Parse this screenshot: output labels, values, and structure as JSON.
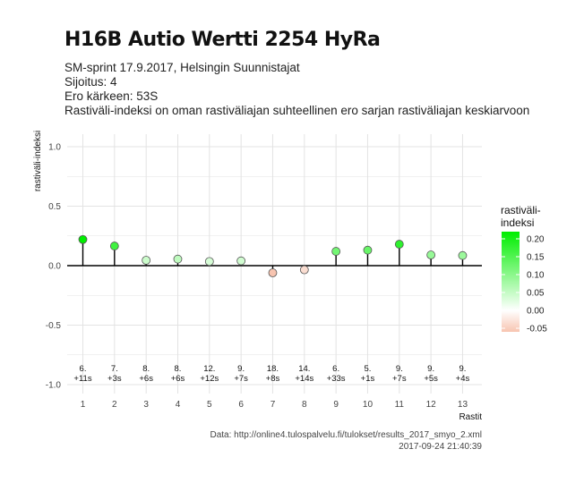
{
  "header": {
    "title": "H16B Autio Wertti 2254 HyRa",
    "subtitle_lines": [
      "SM-sprint 17.9.2017, Helsingin Suunnistajat",
      "Sijoitus: 4",
      "Ero kärkeen: 53S",
      "Rastiväli-indeksi on oman rastiväliajan suhteellinen ero sarjan rastiväliajan keskiarvoon"
    ]
  },
  "caption": {
    "source": "Data: http://online4.tulospalvelu.fi/tulokset/results_2017_smyo_2.xml",
    "timestamp": "2017-09-24 21:40:39"
  },
  "chart_data": {
    "type": "lollipop",
    "xlabel": "Rastit",
    "ylabel": "rastiväli-indeksi",
    "ylim": [
      -1.0,
      1.0
    ],
    "yticks": [
      -1.0,
      -0.5,
      0.0,
      0.5,
      1.0
    ],
    "ytick_labels": [
      "-1.0",
      "-0.5",
      "0.0",
      "0.5",
      "1.0"
    ],
    "xlim": [
      0.5,
      13.5
    ],
    "categories": [
      "1",
      "2",
      "3",
      "4",
      "5",
      "6",
      "7",
      "8",
      "9",
      "10",
      "11",
      "12",
      "13"
    ],
    "values": [
      0.22,
      0.165,
      0.045,
      0.055,
      0.035,
      0.04,
      -0.06,
      -0.035,
      0.12,
      0.13,
      0.18,
      0.09,
      0.085
    ],
    "rank_labels": [
      "6.",
      "7.",
      "8.",
      "8.",
      "12.",
      "9.",
      "18.",
      "14.",
      "6.",
      "5.",
      "9.",
      "9.",
      "9."
    ],
    "diff_labels": [
      "+11s",
      "+3s",
      "+6s",
      "+6s",
      "+12s",
      "+7s",
      "+8s",
      "+14s",
      "+33s",
      "+1s",
      "+7s",
      "+5s",
      "+4s"
    ],
    "grid": true,
    "legend": {
      "title_lines": [
        "rastiväli-",
        "indeksi"
      ],
      "position": "right",
      "ticks": [
        "0.20",
        "0.15",
        "0.10",
        "0.05",
        "0.00",
        "-0.05"
      ],
      "tick_values": [
        0.2,
        0.15,
        0.1,
        0.05,
        0.0,
        -0.05
      ],
      "range": [
        -0.06,
        0.22
      ],
      "color_high": "#00ee00",
      "color_mid": "#ffffff",
      "color_low": "#f7c4b0"
    },
    "colors": {
      "panel_background": "#ffffff",
      "grid": "#e3e3e3",
      "zero_line": "#000000",
      "stem": "#000000",
      "point_border": "#555555"
    }
  }
}
